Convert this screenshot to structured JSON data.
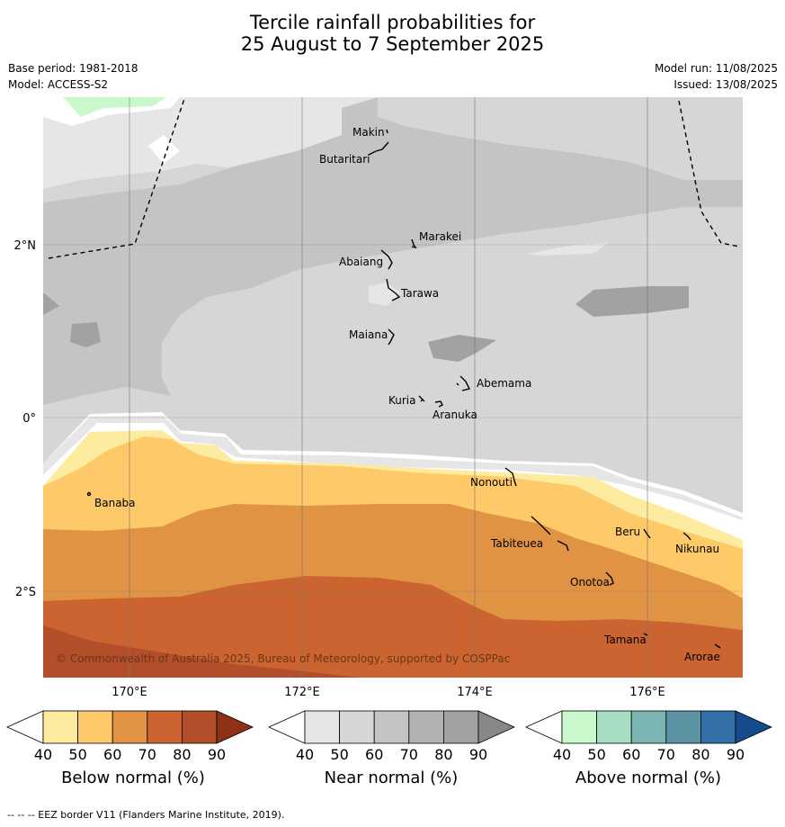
{
  "title_line1": "Tercile rainfall probabilities for",
  "title_line2": "25 August to 7 September 2025",
  "base_period": "Base period: 1981-2018",
  "model": "Model: ACCESS-S2",
  "model_run": "Model run: 11/08/2025",
  "issued": "Issued: 13/08/2025",
  "copyright": "© Commonwealth of Australia 2025, Bureau of Meteorology, supported by COSPPac",
  "footer": "-- -- -- EEZ border V11 (Flanders Marine Institute, 2019).",
  "axes": {
    "lon_ticks": [
      "170°E",
      "172°E",
      "174°E",
      "176°E"
    ],
    "lat_ticks": [
      "2°N",
      "0°",
      "2°S"
    ]
  },
  "places": {
    "makin": "Makin",
    "butaritari": "Butaritari",
    "marakei": "Marakei",
    "abaiang": "Abaiang",
    "tarawa": "Tarawa",
    "maiana": "Maiana",
    "abemama": "Abemama",
    "kuria": "Kuria",
    "aranuka": "Aranuka",
    "nonouti": "Nonouti",
    "banaba": "Banaba",
    "tabiteuea": "Tabiteuea",
    "beru": "Beru",
    "nikunau": "Nikunau",
    "onotoa": "Onotoa",
    "tamana": "Tamana",
    "arorae": "Arorae"
  },
  "colorbars": [
    {
      "title": "Below normal (%)",
      "ticks": [
        "40",
        "50",
        "60",
        "70",
        "80",
        "90"
      ],
      "colors": [
        "#ffffff",
        "#fdeba0",
        "#fdc969",
        "#e09342",
        "#cb6431",
        "#b34e2a",
        "#8e3119"
      ]
    },
    {
      "title": "Near normal (%)",
      "ticks": [
        "40",
        "50",
        "60",
        "70",
        "80",
        "90"
      ],
      "colors": [
        "#ffffff",
        "#e6e6e6",
        "#d6d6d6",
        "#c4c4c4",
        "#b2b2b2",
        "#a2a2a2",
        "#888888"
      ]
    },
    {
      "title": "Above normal (%)",
      "ticks": [
        "40",
        "50",
        "60",
        "70",
        "80",
        "90"
      ],
      "colors": [
        "#ffffff",
        "#c8f8cc",
        "#a6dcc1",
        "#7ab5b1",
        "#5b93a4",
        "#336fa8",
        "#164c8c"
      ]
    }
  ]
}
